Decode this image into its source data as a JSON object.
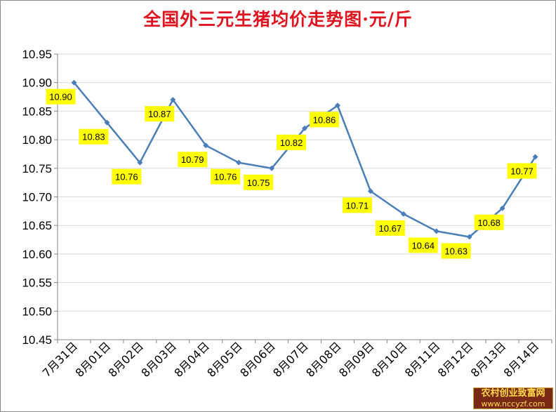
{
  "title": "全国外三元生猪均价走势图·元/斤",
  "watermark": {
    "name": "农村创业致富网",
    "url": "www.nccyzf.com"
  },
  "colors": {
    "title": "#e0141e",
    "line": "#4a7ebb",
    "label_bg": "#ffff00",
    "grid": "#d9d9d9"
  },
  "chart_data": {
    "type": "line",
    "title": "全国外三元生猪均价走势图·元/斤",
    "xlabel": "",
    "ylabel": "",
    "ylim": [
      10.45,
      10.95
    ],
    "yticks": [
      "10.45",
      "10.50",
      "10.55",
      "10.60",
      "10.65",
      "10.70",
      "10.75",
      "10.80",
      "10.85",
      "10.90",
      "10.95"
    ],
    "grid": true,
    "legend": "none",
    "categories": [
      "7月31日",
      "8月01日",
      "8月02日",
      "8月03日",
      "8月04日",
      "8月05日",
      "8月06日",
      "8月07日",
      "8月08日",
      "8月09日",
      "8月10日",
      "8月11日",
      "8月12日",
      "8月13日",
      "8月14日"
    ],
    "values": [
      10.9,
      10.83,
      10.76,
      10.87,
      10.79,
      10.76,
      10.75,
      10.82,
      10.86,
      10.71,
      10.67,
      10.64,
      10.63,
      10.68,
      10.77
    ],
    "labels": [
      "10.90",
      "10.83",
      "10.76",
      "10.87",
      "10.79",
      "10.76",
      "10.75",
      "10.82",
      "10.86",
      "10.71",
      "10.67",
      "10.64",
      "10.63",
      "10.68",
      "10.77"
    ]
  }
}
